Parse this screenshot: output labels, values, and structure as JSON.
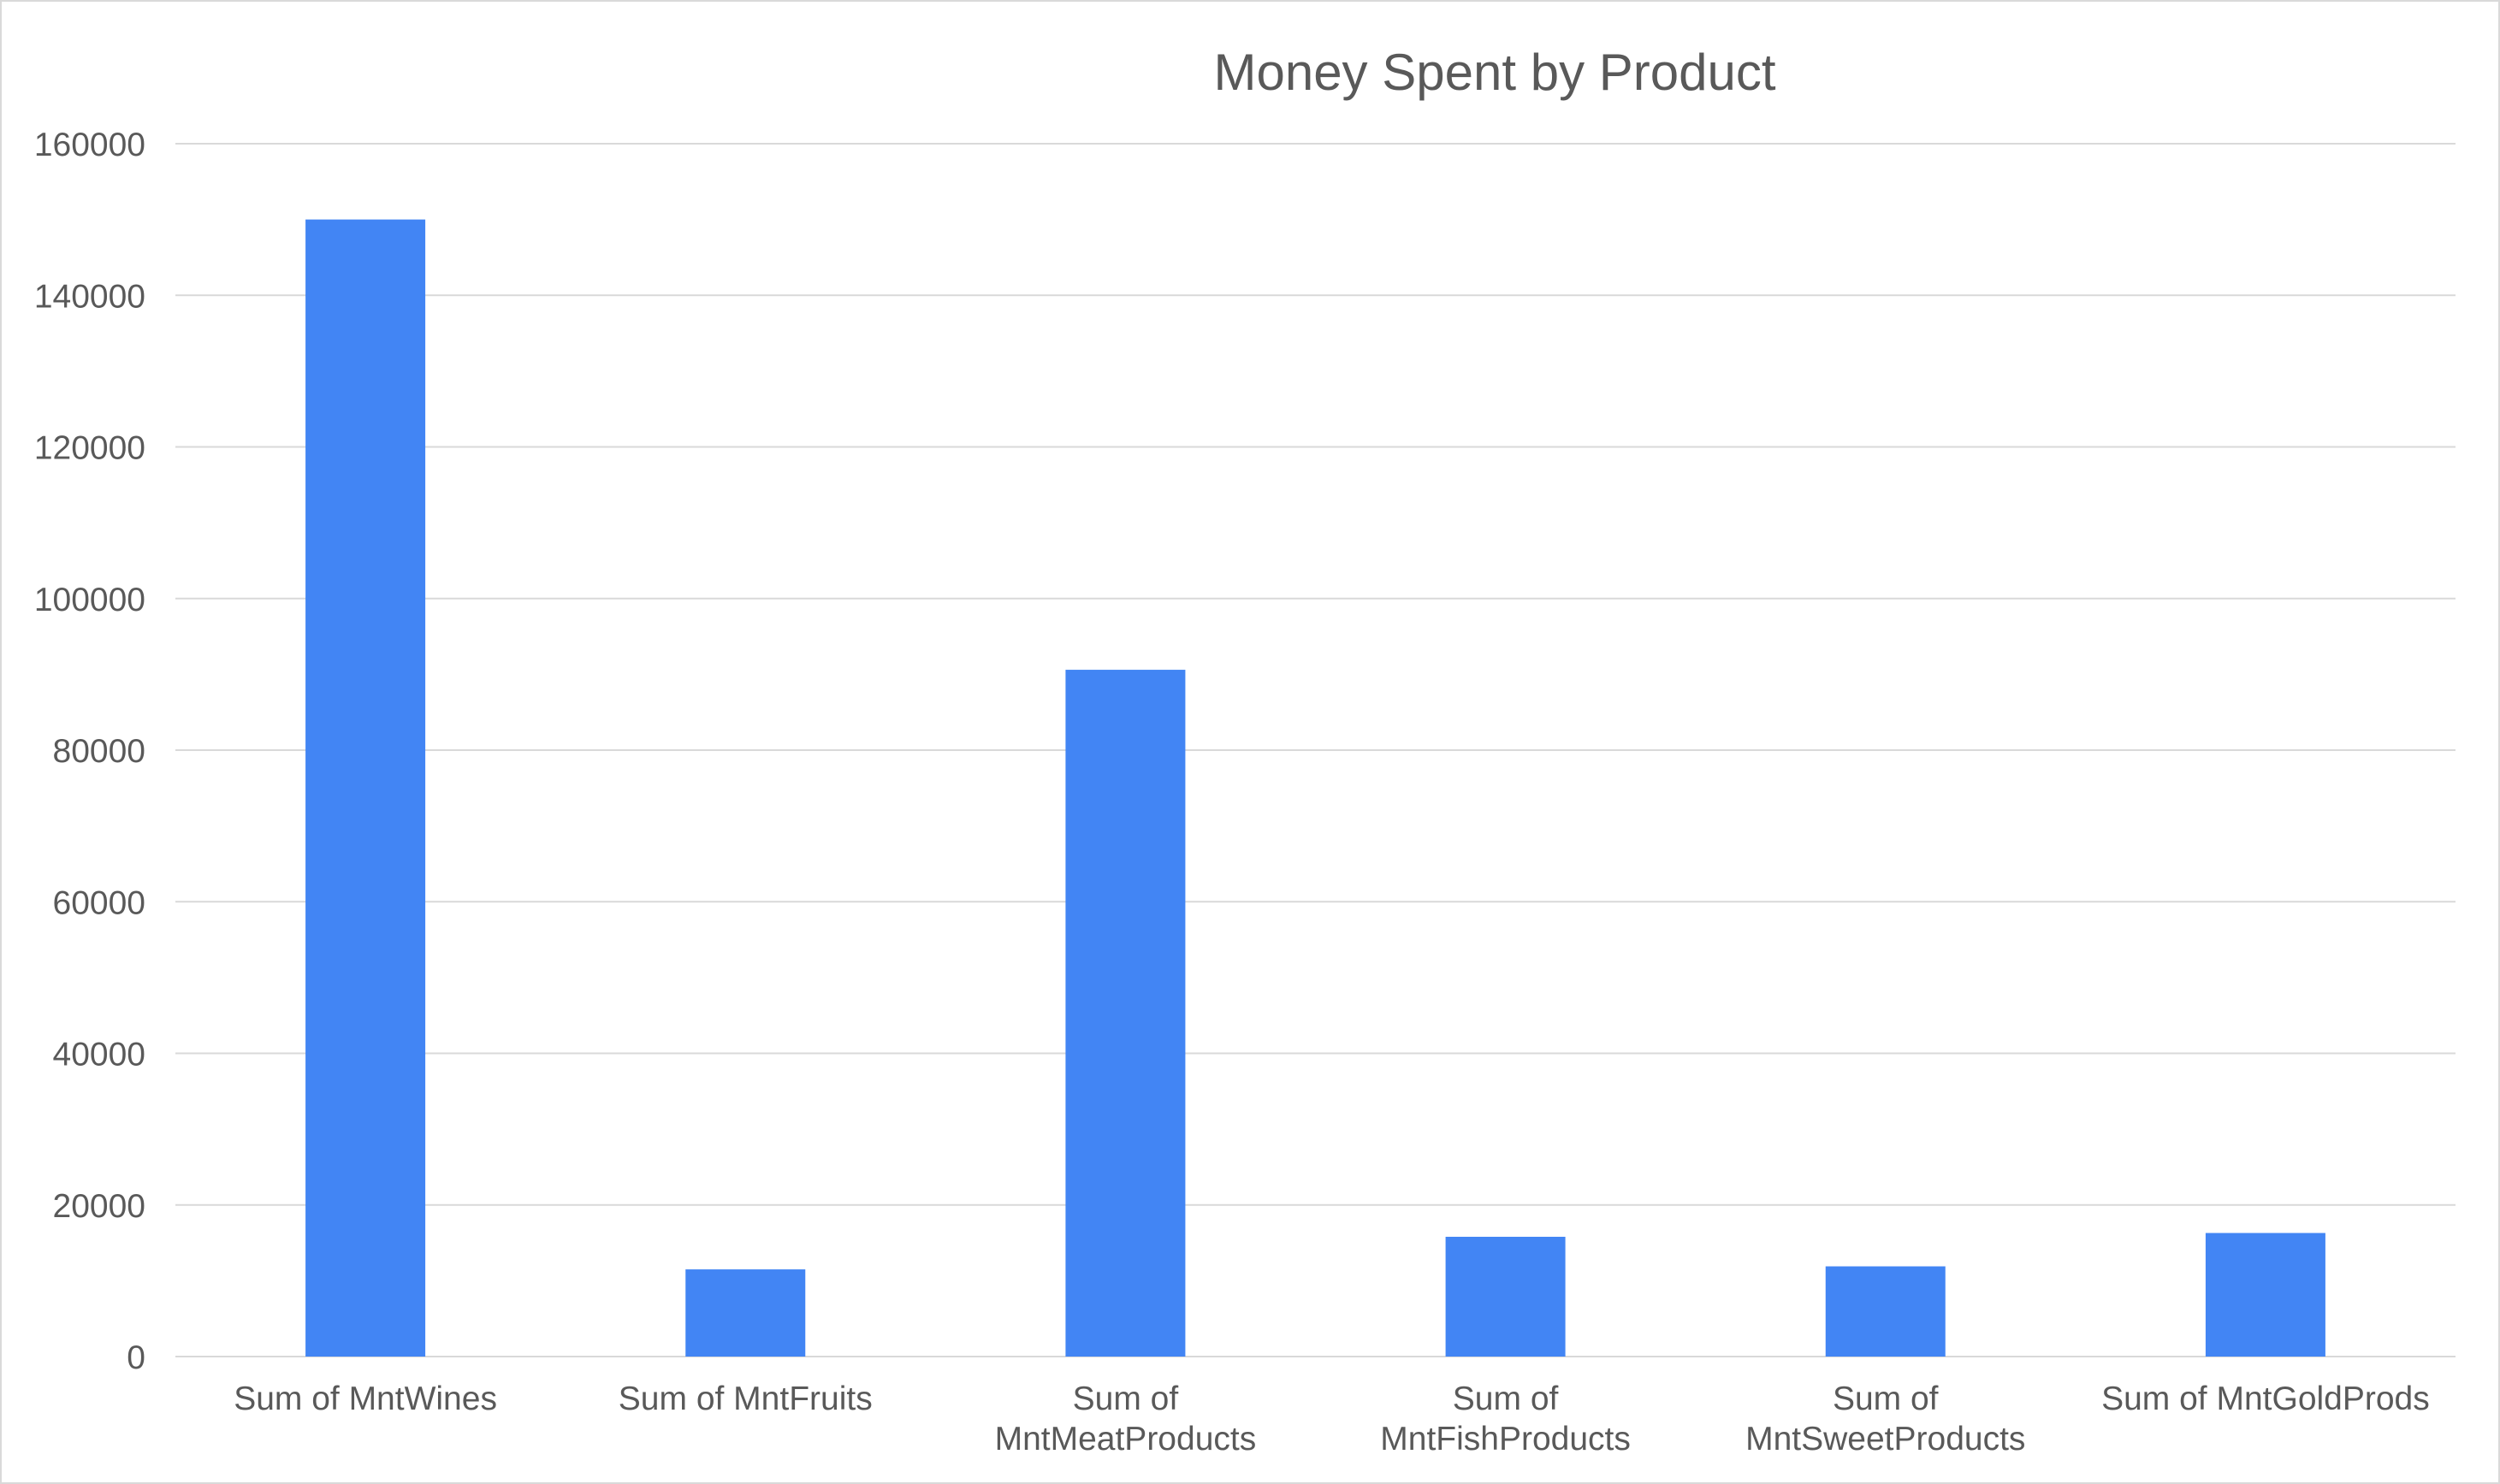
{
  "chart_data": {
    "type": "bar",
    "title": "Money Spent by Product",
    "xlabel": "",
    "ylabel": "",
    "categories": [
      [
        "Sum of MntWines"
      ],
      [
        "Sum of MntFruits"
      ],
      [
        "Sum of",
        "MntMeatProducts"
      ],
      [
        "Sum of",
        "MntFishProducts"
      ],
      [
        "Sum of",
        "MntSweetProducts"
      ],
      [
        "Sum of MntGoldProds"
      ]
    ],
    "values": [
      150000,
      11500,
      90600,
      15800,
      11900,
      16300
    ],
    "ylim": [
      0,
      160000
    ],
    "yticks": [
      "0",
      "20000",
      "40000",
      "60000",
      "80000",
      "100000",
      "120000",
      "140000",
      "160000"
    ],
    "grid": true,
    "legend": "none",
    "bar_color": "#4285f4"
  }
}
